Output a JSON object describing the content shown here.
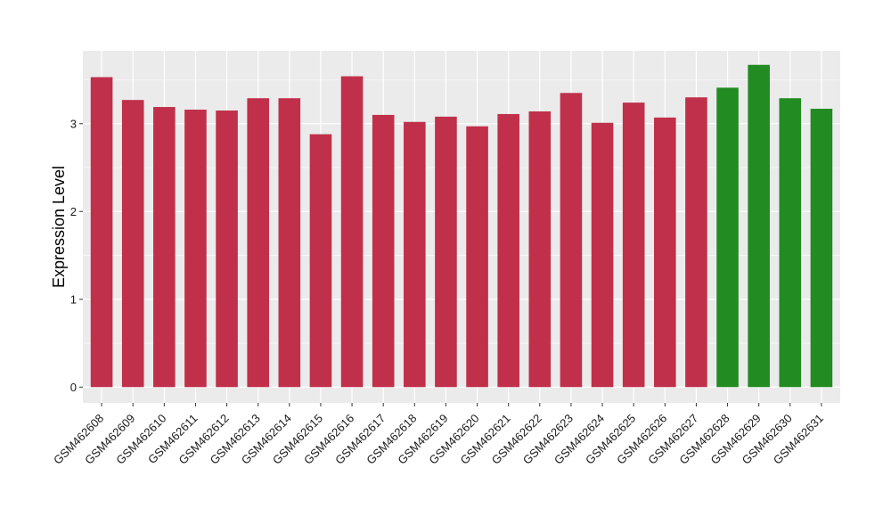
{
  "chart_data": {
    "type": "bar",
    "title": "",
    "xlabel": "",
    "ylabel": "Expression Level",
    "ylim": [
      -0.18,
      3.83
    ],
    "yticks": [
      0,
      1,
      2,
      3
    ],
    "grid": true,
    "legend": "none",
    "panel_color": "#ebebeb",
    "categories": [
      "GSM462608",
      "GSM462609",
      "GSM462610",
      "GSM462611",
      "GSM462612",
      "GSM462613",
      "GSM462614",
      "GSM462615",
      "GSM462616",
      "GSM462617",
      "GSM462618",
      "GSM462619",
      "GSM462620",
      "GSM462621",
      "GSM462622",
      "GSM462623",
      "GSM462624",
      "GSM462625",
      "GSM462626",
      "GSM462627",
      "GSM462628",
      "GSM462629",
      "GSM462630",
      "GSM462631"
    ],
    "values": [
      3.53,
      3.27,
      3.19,
      3.16,
      3.15,
      3.29,
      3.29,
      2.88,
      3.54,
      3.1,
      3.02,
      3.08,
      2.97,
      3.11,
      3.14,
      3.35,
      3.01,
      3.24,
      3.07,
      3.3,
      3.41,
      3.67,
      3.29,
      3.17
    ],
    "colors": [
      "#c0304a",
      "#c0304a",
      "#c0304a",
      "#c0304a",
      "#c0304a",
      "#c0304a",
      "#c0304a",
      "#c0304a",
      "#c0304a",
      "#c0304a",
      "#c0304a",
      "#c0304a",
      "#c0304a",
      "#c0304a",
      "#c0304a",
      "#c0304a",
      "#c0304a",
      "#c0304a",
      "#c0304a",
      "#c0304a",
      "#228b22",
      "#228b22",
      "#228b22",
      "#228b22"
    ]
  }
}
